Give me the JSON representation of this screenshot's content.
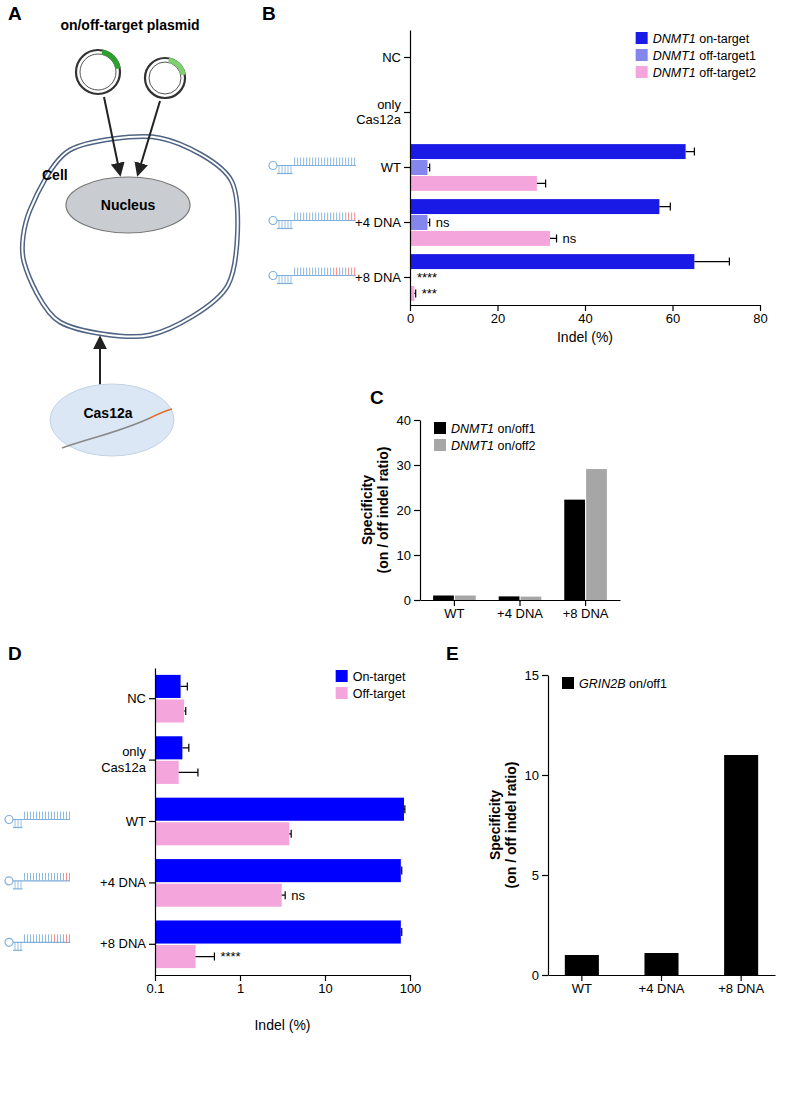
{
  "panel_labels": [
    "A",
    "B",
    "C",
    "D",
    "E"
  ],
  "diagram": {
    "plasmid_label": "on/off-target plasmid",
    "cell_label": "Cell",
    "nucleus_label": "Nucleus",
    "protein_label": "Cas12a"
  },
  "chart_data": [
    {
      "type": "bar",
      "orientation": "horizontal",
      "categories": [
        "NC",
        "only\nCas12a",
        "WT",
        "+4 DNA",
        "+8 DNA"
      ],
      "series": [
        {
          "name": "DNMT1 on-target",
          "color": "#1a1ae6",
          "values": [
            0,
            0,
            63,
            57,
            65
          ],
          "errors": [
            null,
            null,
            2,
            2.5,
            8
          ],
          "significance": [
            null,
            null,
            null,
            null,
            null
          ]
        },
        {
          "name": "DNMT1 off-target1",
          "color": "#8585ee",
          "values": [
            0,
            0,
            4,
            4,
            0.2
          ],
          "errors": [
            null,
            null,
            0.5,
            0.5,
            null
          ],
          "significance": [
            null,
            null,
            null,
            "ns",
            "****"
          ]
        },
        {
          "name": "DNMT1 off-target2",
          "color": "#f4a6dc",
          "values": [
            0,
            0,
            29,
            32,
            1.0
          ],
          "errors": [
            null,
            null,
            2,
            1.5,
            0.3
          ],
          "significance": [
            null,
            null,
            null,
            "ns",
            "***"
          ]
        }
      ],
      "xlabel": "Indel (%)",
      "xlim": [
        0,
        80
      ],
      "xticks": [
        0,
        20,
        40,
        60,
        80
      ],
      "legend": "top-right"
    },
    {
      "type": "bar",
      "categories": [
        "WT",
        "+4 DNA",
        "+8 DNA"
      ],
      "series": [
        {
          "name": "DNMT1 on/off1",
          "color": "#000000",
          "values": [
            1,
            0.8,
            22.3
          ]
        },
        {
          "name": "DNMT1 on/off2",
          "color": "#a6a6a6",
          "values": [
            1,
            0.75,
            29.1
          ]
        }
      ],
      "ylabel": "Specificity\n(on / off indel ratio)",
      "ylim": [
        0,
        40
      ],
      "yticks": [
        0,
        10,
        20,
        30,
        40
      ],
      "legend": "top-left"
    },
    {
      "type": "bar",
      "orientation": "horizontal",
      "log": "x",
      "categories": [
        "NC",
        "only\nCas12a",
        "WT",
        "+4 DNA",
        "+8 DNA"
      ],
      "series": [
        {
          "name": "On-target",
          "color": "#0000ff",
          "values": [
            0.2,
            0.21,
            85,
            78,
            78
          ],
          "errors": [
            0.04,
            0.04,
            2,
            2,
            2
          ],
          "significance": [
            null,
            null,
            null,
            null,
            null
          ]
        },
        {
          "name": "Off-target",
          "color": "#f4a6dc",
          "values": [
            0.22,
            0.19,
            3.8,
            3.1,
            0.3
          ],
          "errors": [
            0.01,
            0.13,
            0.2,
            0.3,
            0.2
          ],
          "significance": [
            null,
            null,
            null,
            "ns",
            "****"
          ]
        }
      ],
      "xlabel": "Indel (%)",
      "xlim": [
        0.1,
        100
      ],
      "xticks": [
        0.1,
        1,
        10,
        100
      ],
      "legend": "top-right"
    },
    {
      "type": "bar",
      "categories": [
        "WT",
        "+4 DNA",
        "+8 DNA"
      ],
      "series": [
        {
          "name": "GRIN2B on/off1",
          "color": "#000000",
          "values": [
            1,
            1.1,
            11
          ]
        }
      ],
      "ylabel": "Specificity\n(on / off indel ratio)",
      "ylim": [
        0,
        15
      ],
      "yticks": [
        0,
        5,
        10,
        15
      ],
      "legend": "top-left"
    }
  ]
}
